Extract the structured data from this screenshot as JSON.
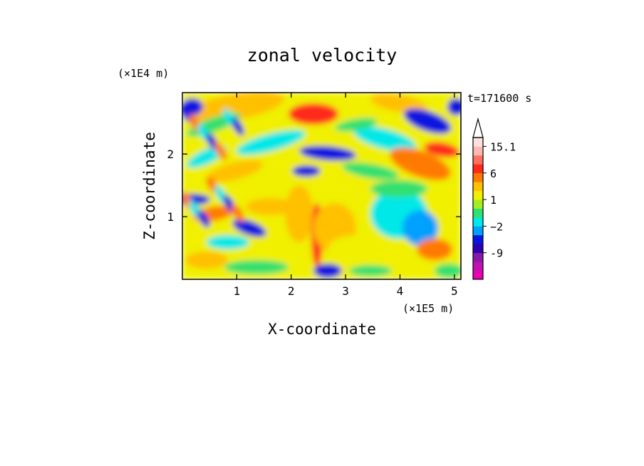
{
  "chart_data": {
    "type": "heatmap",
    "title": "zonal velocity",
    "xlabel": "X-coordinate",
    "ylabel": "Z-coordinate",
    "x_scale_label": "(×1E5 m)",
    "y_scale_label": "(×1E4 m)",
    "time_label": "t=171600 s",
    "xlim": [
      0,
      5.12
    ],
    "ylim": [
      0,
      2.98
    ],
    "x_ticks": [
      {
        "value": 1,
        "label": "1"
      },
      {
        "value": 2,
        "label": "2"
      },
      {
        "value": 3,
        "label": "3"
      },
      {
        "value": 4,
        "label": "4"
      },
      {
        "value": 5,
        "label": "5"
      }
    ],
    "y_ticks": [
      {
        "value": 1,
        "label": "1"
      },
      {
        "value": 2,
        "label": "2"
      }
    ],
    "colorbar": {
      "levels": [
        -15,
        -12,
        -9,
        -6,
        -4,
        -2,
        -1,
        0,
        1,
        2,
        4,
        6,
        9,
        12,
        15.1
      ],
      "colors": [
        "#e800b4",
        "#c010b0",
        "#8a18a8",
        "#2c00b0",
        "#0a14e0",
        "#00a0ff",
        "#00e8e8",
        "#30e070",
        "#a0f020",
        "#f0f000",
        "#ffc000",
        "#ff7a00",
        "#ff2a1a",
        "#ff7060",
        "#ffb8b0",
        "#ffe0dc"
      ],
      "labels": [
        {
          "value": -9,
          "label": "-9"
        },
        {
          "value": -2,
          "label": "−2"
        },
        {
          "value": 1,
          "label": "1"
        },
        {
          "value": 6,
          "label": "6"
        },
        {
          "value": 15.1,
          "label": "15.1"
        }
      ]
    },
    "grid": false,
    "legend": "colorbar-right"
  }
}
